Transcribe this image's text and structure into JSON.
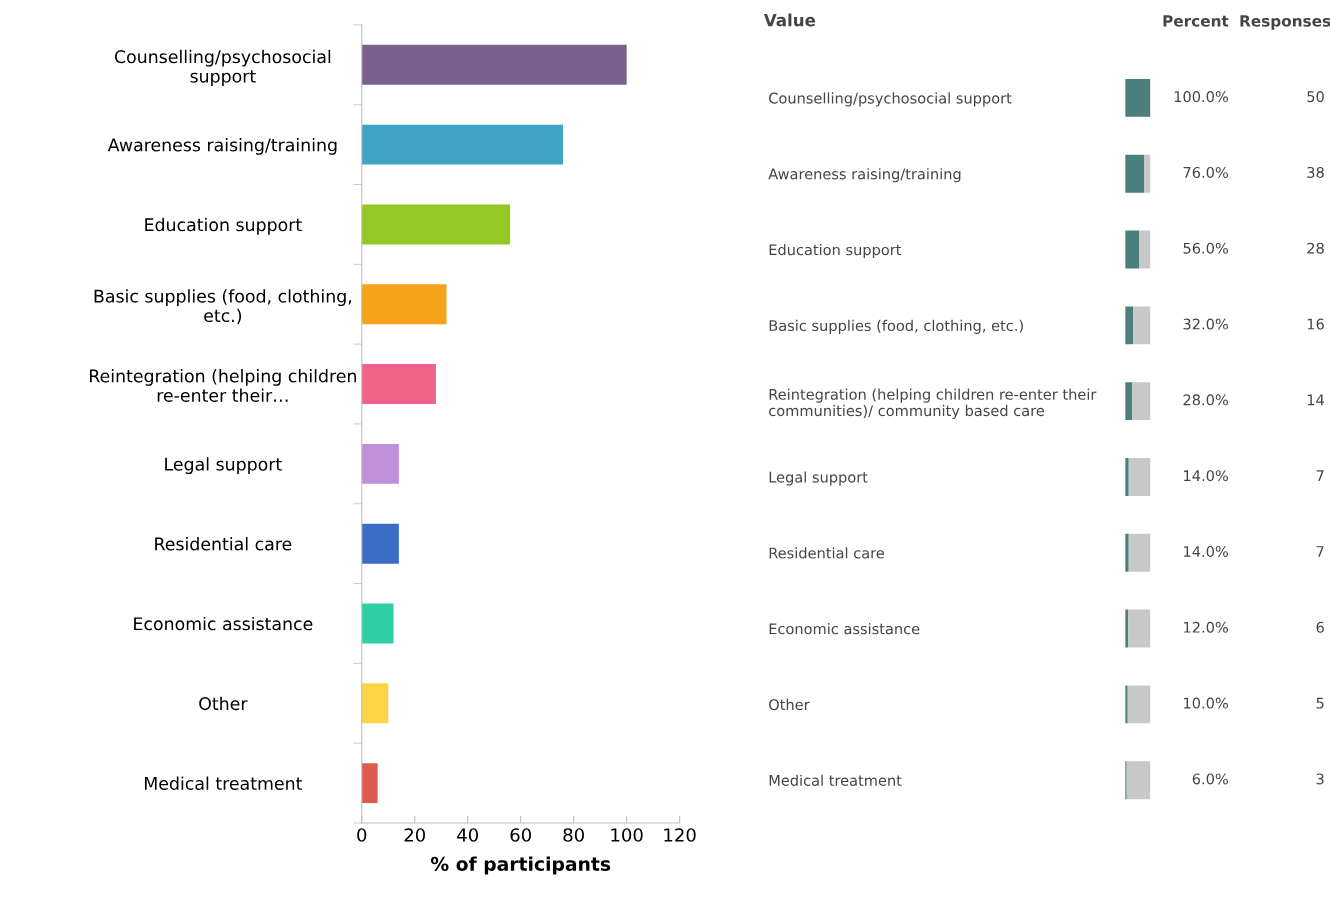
{
  "chart_data": [
    {
      "type": "bar",
      "orientation": "horizontal",
      "xlabel": "% of participants",
      "xlim": [
        0,
        120
      ],
      "xticks": [
        0,
        20,
        40,
        60,
        80,
        100,
        120
      ],
      "categories": [
        "Counselling/psychosocial support",
        "Awareness raising/training",
        "Education support",
        "Basic supplies (food, clothing, etc.)",
        "Reintegration (helping children re-enter their…",
        "Legal support",
        "Residential care",
        "Economic assistance",
        "Other",
        "Medical treatment"
      ],
      "values": [
        100,
        76,
        56,
        32,
        28,
        14,
        14,
        12,
        10,
        6
      ],
      "colors": [
        "#7b5f8f",
        "#3fa3c4",
        "#94c923",
        "#f5a31a",
        "#f0648a",
        "#bf8fd9",
        "#3a6cc8",
        "#2ecfa5",
        "#fdd445",
        "#de5a4f"
      ]
    },
    {
      "type": "bar",
      "orientation": "horizontal",
      "stacked": true,
      "ylabel": "Value",
      "xlim": [
        0,
        100
      ],
      "tick_labels": false,
      "categories": [
        "Counselling/psychosocial support",
        "Awareness raising/training",
        "Education support",
        "Basic supplies (food, clothing, etc.)",
        "Reintegration (helping children re-enter their communities)/ community based care",
        "Legal support",
        "Residential care",
        "Economic assistance",
        "Other",
        "Medical treatment"
      ],
      "series": [
        {
          "name": "Percent",
          "color": "#4a7f7c",
          "values": [
            100,
            76,
            56,
            32,
            28,
            14,
            14,
            12,
            10,
            6
          ],
          "value_labels": [
            "100.0%",
            "76.0%",
            "56.0%",
            "32.0%",
            "28.0%",
            "14.0%",
            "14.0%",
            "12.0%",
            "10.0%",
            "6.0%"
          ]
        },
        {
          "color": "#c8c8c8",
          "values": [
            0,
            24,
            44,
            68,
            72,
            86,
            86,
            88,
            90,
            94
          ]
        }
      ],
      "annotations": [
        "Responses",
        "50",
        "38",
        "28",
        "16",
        "14",
        "7",
        "7",
        "6",
        "5",
        "3"
      ]
    }
  ]
}
